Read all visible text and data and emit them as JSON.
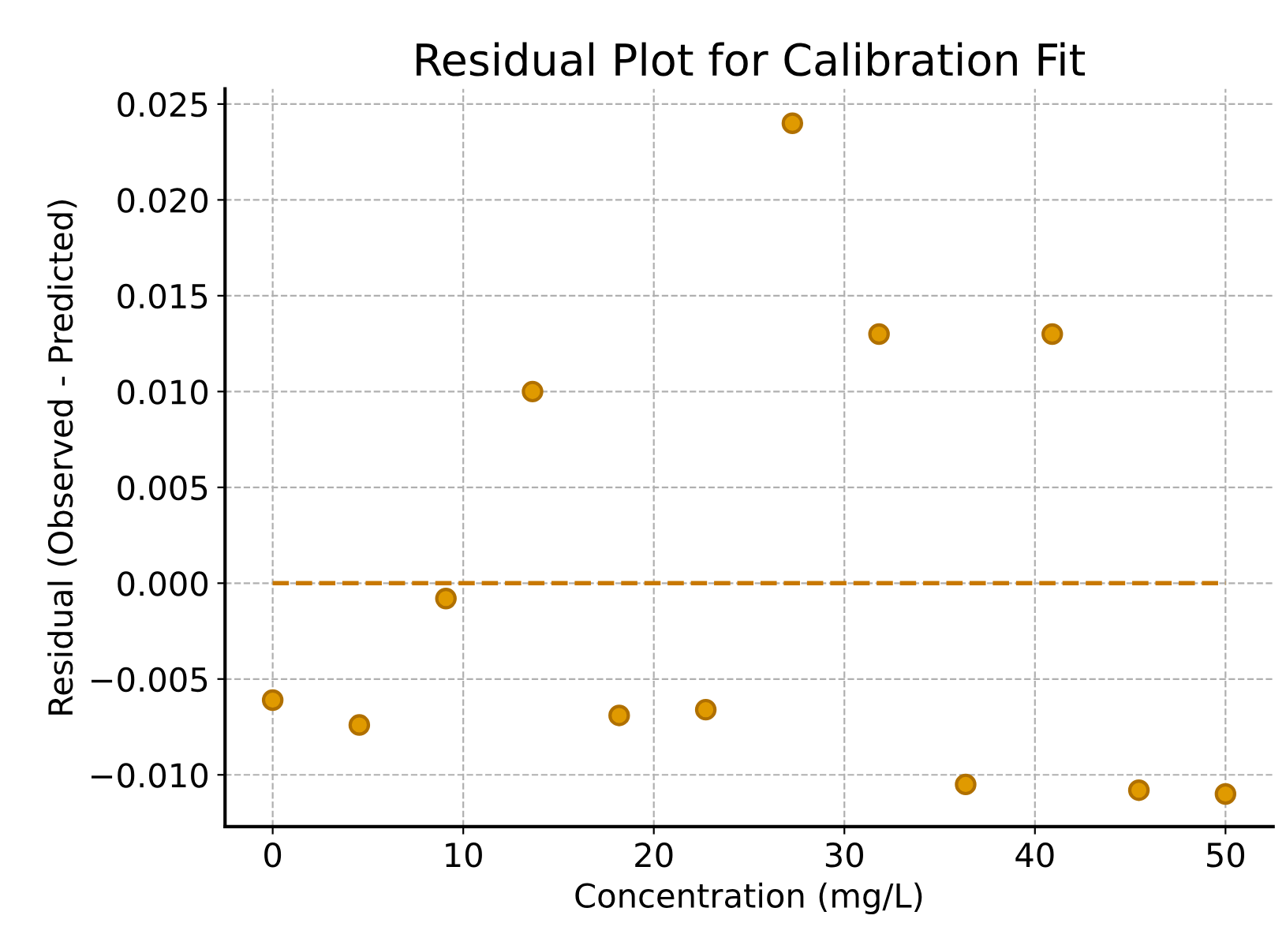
{
  "chart_data": {
    "type": "scatter",
    "title": "Residual Plot for Calibration Fit",
    "xlabel": "Concentration (mg/L)",
    "ylabel": "Residual (Observed - Predicted)",
    "series": [
      {
        "color": "#e09a00",
        "x": [
          0,
          4.545,
          9.091,
          13.636,
          18.182,
          22.727,
          27.273,
          31.818,
          36.364,
          40.909,
          45.455,
          50
        ],
        "values": [
          -0.0061,
          -0.0074,
          -0.0008,
          0.01,
          -0.0069,
          -0.0066,
          0.024,
          0.013,
          -0.0105,
          0.013,
          -0.0108,
          -0.011
        ],
        "marker": "circle"
      },
      {
        "type": "line",
        "color": "#c87800",
        "x": [
          0,
          50
        ],
        "values": [
          0,
          0
        ],
        "line_style": "dashed",
        "marker": "none"
      }
    ],
    "xlim": [
      -2.5,
      52.5
    ],
    "ylim": [
      -0.0127,
      0.0258
    ],
    "xticks": [
      0,
      10,
      20,
      30,
      40,
      50
    ],
    "yticks": [
      {
        "value": -0.01,
        "label": "−0.010"
      },
      {
        "value": -0.005,
        "label": "−0.005"
      },
      {
        "value": 0,
        "label": "0.000"
      },
      {
        "value": 0.005,
        "label": "0.005"
      },
      {
        "value": 0.01,
        "label": "0.010"
      },
      {
        "value": 0.015,
        "label": "0.015"
      },
      {
        "value": 0.02,
        "label": "0.020"
      },
      {
        "value": 0.025,
        "label": "0.025"
      }
    ],
    "grid": true,
    "legend": false
  }
}
